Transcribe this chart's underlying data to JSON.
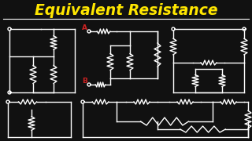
{
  "title": "Equivalent Resistance",
  "title_color": "#FFE600",
  "bg_color": "#111111",
  "line_color": "#ffffff",
  "label_A_color": "#cc2222",
  "label_B_color": "#cc2222",
  "figsize": [
    3.2,
    1.8
  ],
  "dpi": 100
}
